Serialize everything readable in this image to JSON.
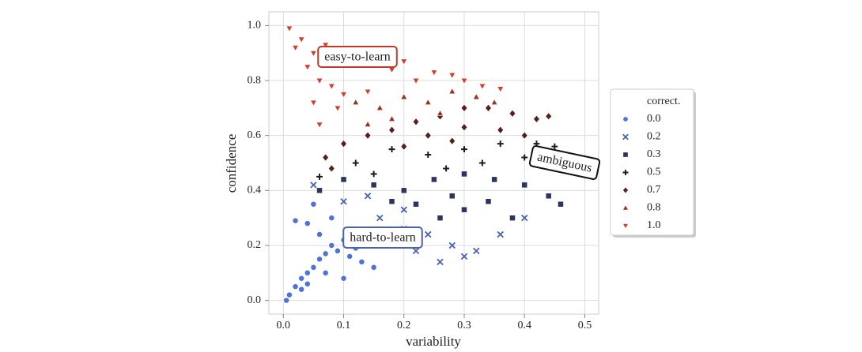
{
  "chart_data": {
    "type": "scatter",
    "xlabel": "variability",
    "ylabel": "confidence",
    "xlim": [
      -0.024,
      0.523
    ],
    "ylim": [
      -0.05,
      1.05
    ],
    "xticks": [
      {
        "value": 0,
        "label": "0.0"
      },
      0.1,
      0.2,
      0.3,
      0.4,
      0.5
    ],
    "yticks": [
      {
        "value": 0,
        "label": "0.0"
      },
      0.2,
      0.4,
      0.6,
      0.8,
      {
        "value": 1,
        "label": "1.0"
      }
    ],
    "grid": true,
    "legend_title": "correct.",
    "legend": "right",
    "annotations": [
      "easy-to-learn",
      "ambiguous",
      "hard-to-learn"
    ],
    "series": [
      {
        "name": "0.0",
        "color": "#4f72d9",
        "marker": "circle",
        "x": [
          0.005,
          0.01,
          0.02,
          0.03,
          0.04,
          0.05,
          0.06,
          0.07,
          0.08,
          0.09,
          0.1,
          0.11,
          0.12,
          0.13,
          0.06,
          0.04,
          0.02,
          0.05,
          0.08,
          0.03,
          0.07,
          0.15,
          0.04,
          0.1
        ],
        "values": [
          0.0,
          0.02,
          0.05,
          0.08,
          0.1,
          0.12,
          0.15,
          0.17,
          0.2,
          0.18,
          0.22,
          0.16,
          0.19,
          0.14,
          0.24,
          0.28,
          0.29,
          0.35,
          0.3,
          0.04,
          0.1,
          0.12,
          0.06,
          0.08
        ]
      },
      {
        "name": "0.2",
        "color": "#4a62b5",
        "marker": "x",
        "x": [
          0.05,
          0.1,
          0.14,
          0.16,
          0.2,
          0.24,
          0.28,
          0.3,
          0.32,
          0.36,
          0.26,
          0.22,
          0.18,
          0.4,
          0.2
        ],
        "values": [
          0.42,
          0.36,
          0.38,
          0.3,
          0.26,
          0.24,
          0.2,
          0.16,
          0.18,
          0.24,
          0.14,
          0.18,
          0.22,
          0.3,
          0.33
        ]
      },
      {
        "name": "0.3",
        "color": "#2b355e",
        "marker": "square",
        "x": [
          0.06,
          0.1,
          0.15,
          0.2,
          0.25,
          0.3,
          0.35,
          0.4,
          0.44,
          0.46,
          0.22,
          0.3,
          0.38,
          0.28,
          0.34,
          0.26,
          0.18
        ],
        "values": [
          0.4,
          0.44,
          0.42,
          0.4,
          0.44,
          0.46,
          0.44,
          0.42,
          0.38,
          0.35,
          0.35,
          0.33,
          0.3,
          0.38,
          0.36,
          0.3,
          0.36
        ]
      },
      {
        "name": "0.5",
        "color": "#1c1c1c",
        "marker": "plus",
        "x": [
          0.06,
          0.12,
          0.18,
          0.24,
          0.3,
          0.36,
          0.42,
          0.45,
          0.33,
          0.27,
          0.4,
          0.15
        ],
        "values": [
          0.45,
          0.5,
          0.55,
          0.53,
          0.55,
          0.57,
          0.57,
          0.56,
          0.5,
          0.48,
          0.52,
          0.46
        ]
      },
      {
        "name": "0.7",
        "color": "#5a1f1a",
        "marker": "diamond",
        "x": [
          0.07,
          0.1,
          0.14,
          0.18,
          0.22,
          0.26,
          0.3,
          0.34,
          0.38,
          0.42,
          0.44,
          0.24,
          0.3,
          0.36,
          0.2,
          0.28,
          0.4,
          0.08
        ],
        "values": [
          0.52,
          0.57,
          0.6,
          0.62,
          0.65,
          0.67,
          0.7,
          0.7,
          0.68,
          0.66,
          0.67,
          0.6,
          0.63,
          0.62,
          0.56,
          0.58,
          0.6,
          0.48
        ]
      },
      {
        "name": "0.8",
        "color": "#9b3122",
        "marker": "triangle-up",
        "x": [
          0.12,
          0.16,
          0.2,
          0.24,
          0.28,
          0.32,
          0.35,
          0.18,
          0.26,
          0.14
        ],
        "values": [
          0.72,
          0.7,
          0.74,
          0.72,
          0.76,
          0.74,
          0.72,
          0.66,
          0.68,
          0.64
        ]
      },
      {
        "name": "1.0",
        "color": "#d43d2c",
        "marker": "triangle-down",
        "x": [
          0.01,
          0.03,
          0.05,
          0.02,
          0.07,
          0.1,
          0.04,
          0.06,
          0.08,
          0.12,
          0.15,
          0.18,
          0.2,
          0.05,
          0.09,
          0.14,
          0.22,
          0.25,
          0.28,
          0.3,
          0.33,
          0.36,
          0.06,
          0.1
        ],
        "values": [
          0.99,
          0.95,
          0.9,
          0.92,
          0.93,
          0.9,
          0.85,
          0.8,
          0.78,
          0.86,
          0.88,
          0.84,
          0.87,
          0.72,
          0.7,
          0.76,
          0.8,
          0.83,
          0.82,
          0.8,
          0.78,
          0.77,
          0.64,
          0.75
        ]
      }
    ]
  }
}
